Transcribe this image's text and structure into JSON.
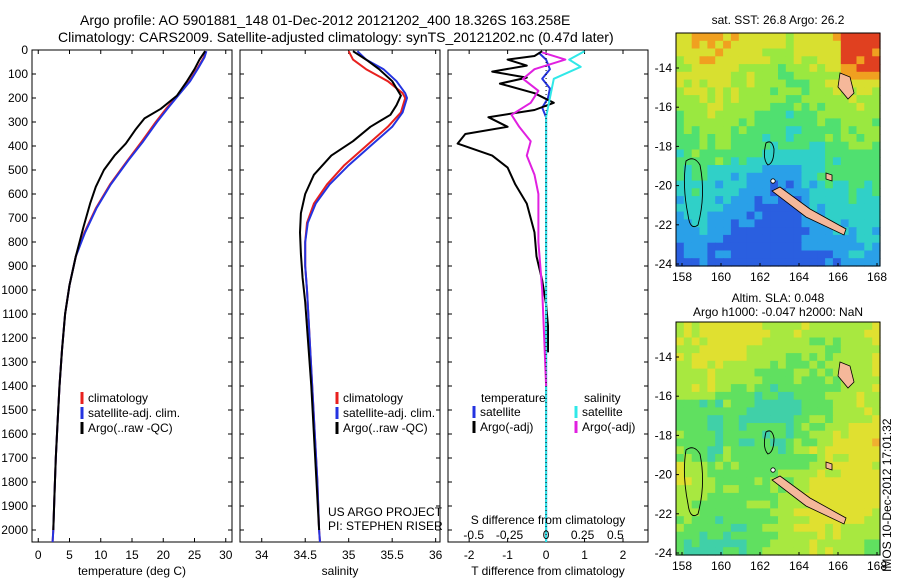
{
  "header": {
    "line1": "Argo profile: AO 5901881_148 01-Dec-2012 20121202_400 18.326S 163.258E",
    "line2": "Climatology: CARS2009. Satellite-adjusted climatology: synTS_20121202.nc (0.47d later)"
  },
  "imos_stamp": "IMOS 10-Dec-2012 17:01:32",
  "colors": {
    "climatology": "#e8201e",
    "satellite": "#2433e0",
    "argo": "#000000",
    "sat_cyan": "#30e8e8",
    "argo_magenta": "#e020e0",
    "island": "#f5b89a"
  },
  "chart_data": [
    {
      "type": "line",
      "id": "temperature",
      "xlabel": "temperature (deg C)",
      "xlim": [
        -1,
        31
      ],
      "xticks": [
        0,
        5,
        10,
        15,
        20,
        25,
        30
      ],
      "ylim": [
        0,
        2050
      ],
      "yticks": [
        0,
        100,
        200,
        300,
        400,
        500,
        600,
        700,
        800,
        900,
        1000,
        1100,
        1200,
        1300,
        1400,
        1500,
        1600,
        1700,
        1800,
        1900,
        2000
      ],
      "legend": [
        "climatology",
        "satellite-adj. clim.",
        "Argo(..raw -QC)"
      ],
      "series": [
        {
          "name": "climatology",
          "color": "#e8201e",
          "points": [
            [
              26.8,
              5
            ],
            [
              26.5,
              30
            ],
            [
              25.5,
              75
            ],
            [
              24.2,
              130
            ],
            [
              22.6,
              180
            ],
            [
              20.6,
              240
            ],
            [
              18.8,
              300
            ],
            [
              16.6,
              380
            ],
            [
              14.3,
              460
            ],
            [
              11.5,
              560
            ],
            [
              9.2,
              660
            ],
            [
              7.4,
              760
            ],
            [
              6.0,
              860
            ],
            [
              5.0,
              980
            ],
            [
              4.3,
              1100
            ],
            [
              3.8,
              1250
            ],
            [
              3.4,
              1400
            ],
            [
              3.1,
              1550
            ],
            [
              2.8,
              1700
            ],
            [
              2.6,
              1850
            ],
            [
              2.4,
              2000
            ],
            [
              2.3,
              2050
            ]
          ]
        },
        {
          "name": "satellite-adj. clim.",
          "color": "#2433e0",
          "points": [
            [
              26.9,
              5
            ],
            [
              26.6,
              30
            ],
            [
              25.6,
              75
            ],
            [
              24.3,
              130
            ],
            [
              22.7,
              180
            ],
            [
              20.8,
              240
            ],
            [
              19.0,
              300
            ],
            [
              16.8,
              380
            ],
            [
              14.4,
              460
            ],
            [
              11.6,
              560
            ],
            [
              9.3,
              660
            ],
            [
              7.5,
              760
            ],
            [
              6.0,
              860
            ],
            [
              5.0,
              980
            ],
            [
              4.3,
              1100
            ],
            [
              3.8,
              1250
            ],
            [
              3.4,
              1400
            ],
            [
              3.1,
              1550
            ],
            [
              2.8,
              1700
            ],
            [
              2.6,
              1850
            ],
            [
              2.4,
              2000
            ],
            [
              2.3,
              2050
            ]
          ]
        },
        {
          "name": "Argo(..raw -QC)",
          "color": "#000000",
          "points": [
            [
              26.7,
              5
            ],
            [
              25.8,
              40
            ],
            [
              25.0,
              80
            ],
            [
              23.8,
              130
            ],
            [
              22.2,
              190
            ],
            [
              19.6,
              245
            ],
            [
              17.0,
              285
            ],
            [
              15.6,
              330
            ],
            [
              14.0,
              390
            ],
            [
              12.2,
              440
            ],
            [
              10.5,
              500
            ],
            [
              9.2,
              570
            ],
            [
              8.3,
              640
            ],
            [
              7.2,
              740
            ],
            [
              6.0,
              860
            ],
            [
              5.0,
              980
            ],
            [
              4.3,
              1100
            ],
            [
              3.8,
              1250
            ],
            [
              3.4,
              1400
            ],
            [
              3.1,
              1550
            ],
            [
              2.8,
              1700
            ],
            [
              2.6,
              1850
            ],
            [
              2.4,
              2000
            ]
          ]
        }
      ]
    },
    {
      "type": "line",
      "id": "salinity",
      "xlabel": "salinity",
      "xlim": [
        33.75,
        36.05
      ],
      "xticks": [
        34,
        34.5,
        35,
        35.5,
        36
      ],
      "ylim": [
        0,
        2050
      ],
      "legend": [
        "climatology",
        "satellite-adj. clim.",
        "Argo(..raw -QC)"
      ],
      "annotation": [
        "US ARGO PROJECT",
        "PI: STEPHEN RISER"
      ],
      "series": [
        {
          "name": "climatology",
          "color": "#e8201e",
          "points": [
            [
              35.0,
              5
            ],
            [
              35.05,
              40
            ],
            [
              35.2,
              80
            ],
            [
              35.45,
              130
            ],
            [
              35.62,
              180
            ],
            [
              35.65,
              200
            ],
            [
              35.6,
              260
            ],
            [
              35.45,
              320
            ],
            [
              35.2,
              400
            ],
            [
              34.95,
              480
            ],
            [
              34.75,
              560
            ],
            [
              34.6,
              640
            ],
            [
              34.52,
              720
            ],
            [
              34.5,
              800
            ],
            [
              34.5,
              900
            ],
            [
              34.52,
              1000
            ],
            [
              34.55,
              1200
            ],
            [
              34.58,
              1400
            ],
            [
              34.61,
              1600
            ],
            [
              34.64,
              1800
            ],
            [
              34.66,
              2000
            ],
            [
              34.67,
              2050
            ]
          ]
        },
        {
          "name": "satellite-adj. clim.",
          "color": "#2433e0",
          "points": [
            [
              35.1,
              5
            ],
            [
              35.2,
              40
            ],
            [
              35.4,
              80
            ],
            [
              35.55,
              130
            ],
            [
              35.65,
              180
            ],
            [
              35.67,
              200
            ],
            [
              35.62,
              260
            ],
            [
              35.5,
              320
            ],
            [
              35.25,
              400
            ],
            [
              35.0,
              480
            ],
            [
              34.78,
              560
            ],
            [
              34.62,
              640
            ],
            [
              34.53,
              720
            ],
            [
              34.5,
              800
            ],
            [
              34.5,
              900
            ],
            [
              34.52,
              1000
            ],
            [
              34.55,
              1200
            ],
            [
              34.58,
              1400
            ],
            [
              34.61,
              1600
            ],
            [
              34.64,
              1800
            ],
            [
              34.66,
              2000
            ],
            [
              34.67,
              2050
            ]
          ]
        },
        {
          "name": "Argo(..raw -QC)",
          "color": "#000000",
          "points": [
            [
              35.05,
              5
            ],
            [
              35.2,
              40
            ],
            [
              35.35,
              80
            ],
            [
              35.5,
              130
            ],
            [
              35.6,
              190
            ],
            [
              35.55,
              230
            ],
            [
              35.48,
              270
            ],
            [
              35.25,
              320
            ],
            [
              35.05,
              380
            ],
            [
              34.8,
              440
            ],
            [
              34.6,
              520
            ],
            [
              34.5,
              600
            ],
            [
              34.45,
              680
            ],
            [
              34.44,
              760
            ],
            [
              34.45,
              850
            ],
            [
              34.47,
              950
            ],
            [
              34.5,
              1050
            ],
            [
              34.53,
              1200
            ],
            [
              34.57,
              1400
            ],
            [
              34.6,
              1600
            ],
            [
              34.63,
              1800
            ],
            [
              34.66,
              2000
            ]
          ]
        }
      ]
    },
    {
      "type": "line",
      "id": "difference",
      "xlabel_top": "S difference from climatology",
      "xlabel": "T difference from climatology",
      "xlim": [
        -2.55,
        2.65
      ],
      "xticks": [
        -2,
        -1,
        0,
        1,
        2
      ],
      "top_ticks": [
        {
          "label": "-0.5",
          "t": -1.88
        },
        {
          "label": "-0.25",
          "t": -0.95
        },
        {
          "label": "0",
          "t": 0
        },
        {
          "label": "0.25",
          "t": 0.95
        },
        {
          "label": "0.5",
          "t": 1.8
        }
      ],
      "ylim": [
        0,
        2050
      ],
      "legend_left_title": "temperature",
      "legend_right_title": "salinity",
      "legend": [
        "satellite",
        "Argo(-adj)",
        "satellite",
        "Argo(-adj)"
      ],
      "series": [
        {
          "name": "temperature satellite",
          "color": "#2433e0",
          "points": [
            [
              -0.2,
              10
            ],
            [
              0.0,
              40
            ],
            [
              0.1,
              80
            ],
            [
              -0.1,
              120
            ],
            [
              0.1,
              160
            ],
            [
              0.05,
              200
            ],
            [
              -0.1,
              240
            ],
            [
              0.0,
              280
            ],
            [
              0.0,
              350
            ],
            [
              0.0,
              600
            ],
            [
              0.0,
              900
            ],
            [
              0.0,
              1200
            ],
            [
              0.0,
              1500
            ],
            [
              0.0,
              2050
            ]
          ]
        },
        {
          "name": "temperature Argo(-adj)",
          "color": "#000000",
          "points": [
            [
              -0.1,
              5
            ],
            [
              -0.3,
              25
            ],
            [
              -1.0,
              40
            ],
            [
              -0.5,
              65
            ],
            [
              -1.4,
              90
            ],
            [
              -0.5,
              115
            ],
            [
              -1.2,
              140
            ],
            [
              -0.3,
              180
            ],
            [
              0.2,
              220
            ],
            [
              -0.3,
              250
            ],
            [
              -1.5,
              280
            ],
            [
              -1.0,
              320
            ],
            [
              -2.1,
              350
            ],
            [
              -2.3,
              390
            ],
            [
              -1.4,
              440
            ],
            [
              -1.0,
              490
            ],
            [
              -0.8,
              560
            ],
            [
              -0.5,
              640
            ],
            [
              -0.3,
              760
            ],
            [
              -0.25,
              860
            ],
            [
              -0.1,
              960
            ],
            [
              0.0,
              1060
            ],
            [
              0.05,
              1150
            ],
            [
              0.05,
              1260
            ]
          ]
        },
        {
          "name": "salinity satellite",
          "color": "#30e8e8",
          "points": [
            [
              1.0,
              5
            ],
            [
              0.6,
              40
            ],
            [
              0.9,
              70
            ],
            [
              0.2,
              120
            ],
            [
              0.1,
              200
            ],
            [
              0.0,
              280
            ],
            [
              0.0,
              600
            ],
            [
              0.0,
              1000
            ],
            [
              0.0,
              1500
            ],
            [
              0.0,
              2050
            ]
          ]
        },
        {
          "name": "salinity Argo(-adj)",
          "color": "#e020e0",
          "points": [
            [
              -0.1,
              10
            ],
            [
              0.5,
              40
            ],
            [
              -0.3,
              80
            ],
            [
              -0.6,
              120
            ],
            [
              -0.2,
              170
            ],
            [
              -0.4,
              220
            ],
            [
              -0.9,
              270
            ],
            [
              -0.7,
              320
            ],
            [
              -0.4,
              380
            ],
            [
              -0.5,
              440
            ],
            [
              -0.3,
              520
            ],
            [
              -0.2,
              600
            ],
            [
              -0.2,
              800
            ],
            [
              -0.1,
              1000
            ],
            [
              -0.05,
              1200
            ],
            [
              0.0,
              1400
            ]
          ]
        }
      ]
    },
    {
      "type": "heatmap",
      "id": "sst_map",
      "title": "sat. SST: 26.8 Argo: 26.2",
      "xticks": [
        "158",
        "160",
        "162",
        "164",
        "166",
        "168"
      ],
      "yticks": [
        "-14",
        "-16",
        "-18",
        "-20",
        "-22",
        "-24"
      ]
    },
    {
      "type": "heatmap",
      "id": "sla_map",
      "title1": "Altim. SLA: 0.048",
      "title2": "Argo h1000: -0.047 h2000: NaN",
      "xticks": [
        "158",
        "160",
        "162",
        "164",
        "166",
        "168"
      ],
      "yticks": [
        "-14",
        "-16",
        "-18",
        "-20",
        "-22",
        "-24"
      ]
    }
  ]
}
